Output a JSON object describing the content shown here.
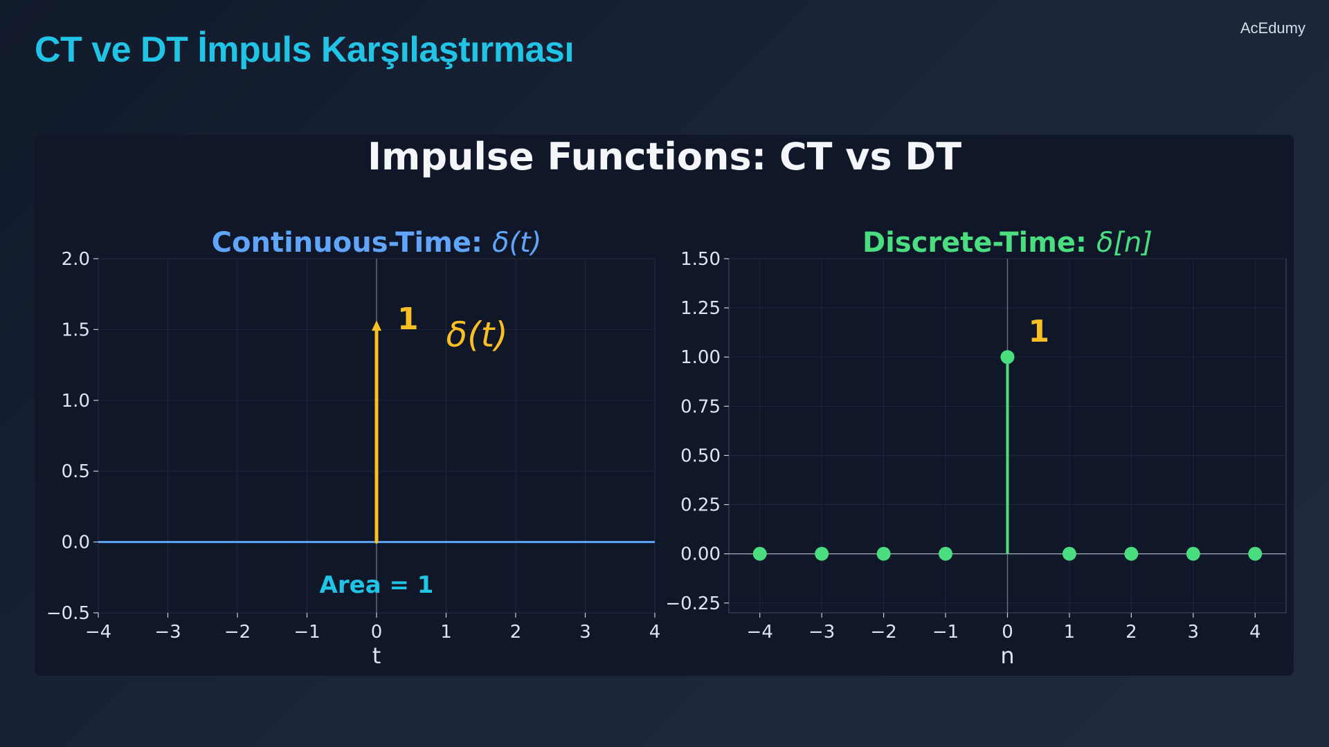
{
  "slide": {
    "title": "CT ve DT İmpuls Karşılaştırması",
    "brand": "AcEdumy"
  },
  "chart_data": {
    "type": "stem",
    "title": "Impulse Functions: CT vs DT",
    "colors": {
      "ct": "#60a5fa",
      "dt": "#4ade80",
      "impulse": "#fbbf24",
      "area": "#22c4e6"
    },
    "panels": [
      {
        "id": "ct",
        "title_text": "Continuous-Time: ",
        "title_math": "δ(t)",
        "xlabel": "t",
        "xlim": [
          -4,
          4
        ],
        "ylim": [
          -0.5,
          2.0
        ],
        "xticks": [
          -4,
          -3,
          -2,
          -1,
          0,
          1,
          2,
          3,
          4
        ],
        "yticks": [
          -0.5,
          0.0,
          0.5,
          1.0,
          1.5,
          2.0
        ],
        "ytick_decimals": 1,
        "baseline": {
          "y": 0,
          "x": [
            -4,
            4
          ]
        },
        "impulse": {
          "x": 0,
          "arrow_height": 1.55,
          "weight_label": "1"
        },
        "math_label": {
          "text": "δ(t)",
          "x": 1.0,
          "y": 1.38
        },
        "area_label": {
          "text": "Area = 1",
          "x": 0,
          "y": -0.3
        }
      },
      {
        "id": "dt",
        "title_text": "Discrete-Time: ",
        "title_math": "δ[n]",
        "xlabel": "n",
        "xlim": [
          -4.5,
          4.5
        ],
        "ylim": [
          -0.3,
          1.5
        ],
        "xticks": [
          -4,
          -3,
          -2,
          -1,
          0,
          1,
          2,
          3,
          4
        ],
        "yticks": [
          -0.25,
          0.0,
          0.25,
          0.5,
          0.75,
          1.0,
          1.25,
          1.5
        ],
        "ytick_decimals": 2,
        "n": [
          -4,
          -3,
          -2,
          -1,
          0,
          1,
          2,
          3,
          4
        ],
        "values": [
          0,
          0,
          0,
          0,
          1,
          0,
          0,
          0,
          0
        ],
        "weight_label": "1"
      }
    ]
  }
}
